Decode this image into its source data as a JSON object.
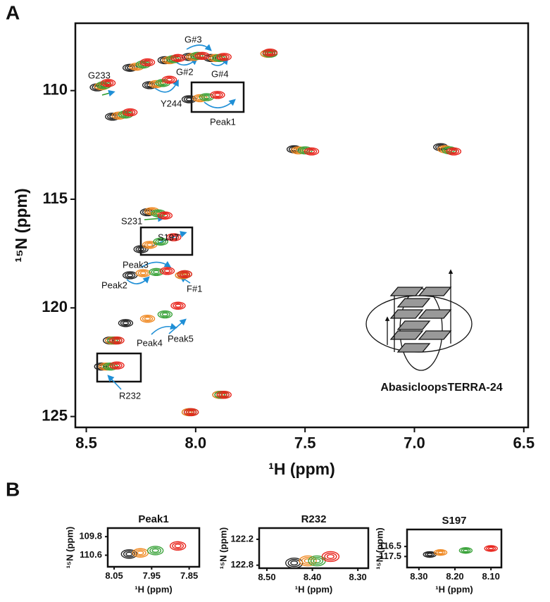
{
  "panel_labels": [
    "A",
    "B"
  ],
  "chart_data": [
    {
      "type": "scatter",
      "x_label": "¹H (ppm)",
      "y_label": "¹⁵N (ppm)",
      "xlim": [
        8.55,
        6.48
      ],
      "ylim": [
        125.5,
        106.9
      ],
      "xticks": [
        8.5,
        {
          "value": 8.0,
          "label": "8.0"
        },
        7.5,
        {
          "value": 7.0,
          "label": "7.0"
        },
        6.5
      ],
      "yticks": [
        110,
        115,
        120,
        125
      ],
      "series": [
        {
          "color": "#222222",
          "x": [
            8.45,
            8.3,
            8.14,
            8.03,
            7.93,
            8.21,
            8.03,
            8.38,
            7.67,
            7.55,
            6.88,
            8.22,
            8.25,
            8.3,
            8.32,
            8.39,
            8.43,
            7.89,
            8.03,
            8.06
          ],
          "values": [
            109.85,
            108.95,
            108.6,
            108.45,
            108.5,
            109.75,
            110.4,
            111.2,
            108.3,
            112.7,
            112.6,
            115.6,
            117.3,
            118.5,
            120.7,
            121.5,
            122.7,
            124.0,
            124.8,
            118.5
          ]
        },
        {
          "color": "#f08a24",
          "x": [
            8.43,
            8.27,
            8.12,
            8.01,
            7.91,
            8.18,
            7.98,
            8.35,
            7.67,
            7.53,
            6.86,
            8.2,
            8.21,
            8.24,
            8.22,
            8.38,
            8.41,
            7.89,
            8.03,
            8.06
          ],
          "values": [
            109.8,
            108.9,
            108.6,
            108.45,
            108.5,
            109.7,
            110.35,
            111.15,
            108.3,
            112.75,
            112.7,
            115.55,
            117.1,
            118.4,
            120.5,
            121.5,
            122.7,
            124.0,
            124.8,
            118.5
          ]
        },
        {
          "color": "#3aa33a",
          "x": [
            8.42,
            8.24,
            8.1,
            7.99,
            7.89,
            8.15,
            7.95,
            8.32,
            7.66,
            7.5,
            6.84,
            8.17,
            8.16,
            8.18,
            8.14,
            8.37,
            8.39,
            7.88,
            8.02,
            8.05
          ],
          "values": [
            109.75,
            108.8,
            108.55,
            108.4,
            108.5,
            109.65,
            110.3,
            111.1,
            108.3,
            112.75,
            112.75,
            115.65,
            116.95,
            118.35,
            120.3,
            121.5,
            122.7,
            124.0,
            124.8,
            118.45
          ]
        },
        {
          "color": "#e8241c",
          "x": [
            8.4,
            8.22,
            8.08,
            7.97,
            7.87,
            8.12,
            7.9,
            8.3,
            7.66,
            7.47,
            6.82,
            8.14,
            8.1,
            8.13,
            8.08,
            8.36,
            8.36,
            7.87,
            8.02,
            8.05
          ],
          "values": [
            109.65,
            108.7,
            108.5,
            108.4,
            108.45,
            109.5,
            110.2,
            111.0,
            108.25,
            112.8,
            112.8,
            115.75,
            116.75,
            118.3,
            119.9,
            121.5,
            122.65,
            124.0,
            124.8,
            118.45
          ]
        }
      ],
      "annotations": [
        "G#3",
        "G#2",
        "G#4",
        "G233",
        "Y244",
        "Peak1",
        "S231",
        "S197",
        "Peak3",
        "Peak2",
        "F#1",
        "Peak4",
        "Peak5",
        "R232",
        "AbasicloopsTERRA-24"
      ]
    },
    {
      "type": "scatter",
      "title": "Peak1",
      "x_label": "¹H (ppm)",
      "y_label": "¹⁵N (ppm)",
      "xlim": [
        8.067,
        7.823
      ],
      "ylim": [
        111.1,
        109.43
      ],
      "xticks": [
        8.05,
        7.95,
        7.85
      ],
      "yticks": [
        109.8,
        110.6
      ],
      "series": [
        {
          "color": "#222222",
          "x": [
            8.01
          ],
          "values": [
            110.55
          ]
        },
        {
          "color": "#f08a24",
          "x": [
            7.98
          ],
          "values": [
            110.5
          ]
        },
        {
          "color": "#3aa33a",
          "x": [
            7.94
          ],
          "values": [
            110.4
          ]
        },
        {
          "color": "#e8241c",
          "x": [
            7.88
          ],
          "values": [
            110.2
          ]
        }
      ]
    },
    {
      "type": "scatter",
      "title": "R232",
      "x_label": "¹H (ppm)",
      "y_label": "¹⁵N (ppm)",
      "xlim": [
        8.517,
        8.277
      ],
      "ylim": [
        122.87,
        121.94
      ],
      "xticks": [
        {
          "value": 8.5,
          "label": "8.50"
        },
        {
          "value": 8.4,
          "label": "8.40"
        },
        {
          "value": 8.3,
          "label": "8.30"
        }
      ],
      "yticks": [
        122.2,
        122.8
      ],
      "series": [
        {
          "color": "#222222",
          "x": [
            8.44
          ],
          "values": [
            122.75
          ]
        },
        {
          "color": "#f08a24",
          "x": [
            8.41
          ],
          "values": [
            122.7
          ]
        },
        {
          "color": "#3aa33a",
          "x": [
            8.39
          ],
          "values": [
            122.7
          ]
        },
        {
          "color": "#e8241c",
          "x": [
            8.36
          ],
          "values": [
            122.6
          ]
        }
      ]
    },
    {
      "type": "scatter",
      "title": "S197",
      "x_label": "¹H (ppm)",
      "y_label": "¹⁵N (ppm)",
      "xlim": [
        8.333,
        8.071
      ],
      "ylim": [
        118.6,
        114.8
      ],
      "xticks": [
        {
          "value": 8.3,
          "label": "8.30"
        },
        {
          "value": 8.2,
          "label": "8.20"
        },
        {
          "value": 8.1,
          "label": "8.10"
        }
      ],
      "yticks": [
        116.5,
        117.5
      ],
      "series": [
        {
          "color": "#222222",
          "x": [
            8.27
          ],
          "values": [
            117.3
          ]
        },
        {
          "color": "#f08a24",
          "x": [
            8.24
          ],
          "values": [
            117.1
          ]
        },
        {
          "color": "#3aa33a",
          "x": [
            8.17
          ],
          "values": [
            116.9
          ]
        },
        {
          "color": "#e8241c",
          "x": [
            8.1
          ],
          "values": [
            116.7
          ]
        }
      ]
    }
  ]
}
